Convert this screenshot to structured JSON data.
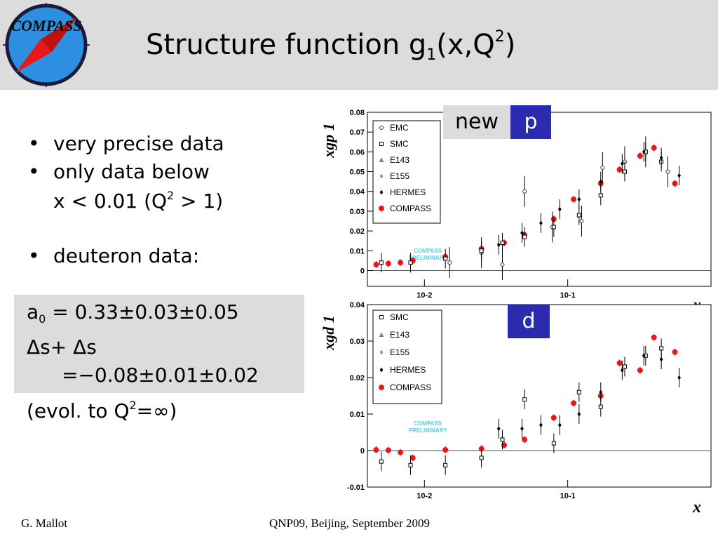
{
  "header": {
    "logo_text": "COMPASS",
    "title_main": "Structure function g",
    "title_sub": "1",
    "title_mid": "(x,Q",
    "title_sup": "2",
    "title_end": ")"
  },
  "bullets": {
    "b1": "very precise data",
    "b2_line1": "only data below",
    "b2_line2a": "x < 0.01 (Q",
    "b2_sup": "2",
    "b2_line2b": " > 1)",
    "b3": "deuteron data:"
  },
  "box": {
    "a0_label": "a",
    "a0_sub": "0",
    "a0_value": " =  0.33±0.03±0.05",
    "ds_label": "Δs+ Δs",
    "ds_value": "=−0.08±0.01±0.02"
  },
  "evol": {
    "text_a": "(evol. to Q",
    "sup": "2",
    "text_b": "=∞)"
  },
  "badges": {
    "new": "new",
    "p": "p",
    "d": "d"
  },
  "footer": {
    "author": "G. Mallot",
    "event": "QNP09, Beijing, September 2009"
  },
  "colors": {
    "header_bg": "#dcdcdc",
    "badge_blue": "#2b2bb0",
    "compass_red": "#e81818"
  },
  "chart_data": [
    {
      "type": "scatter",
      "panel": "p",
      "ylabel": "xg",
      "ylabel_sub": "1",
      "ylabel_sup": "p",
      "xlabel": "x",
      "x_scale": "log",
      "xlim": [
        0.004,
        1
      ],
      "ylim": [
        -0.008,
        0.08
      ],
      "y_ticks": [
        "0",
        "0.01",
        "0.02",
        "0.03",
        "0.04",
        "0.05",
        "0.06",
        "0.07",
        "0.08"
      ],
      "x_ticks": [
        "10-2",
        "10-1"
      ],
      "legend": [
        "EMC",
        "SMC",
        "E143",
        "E155",
        "HERMES",
        "COMPASS"
      ],
      "annotation": [
        "COMPASS",
        "PRELIMINARY"
      ],
      "series": [
        {
          "name": "COMPASS",
          "x": [
            0.0046,
            0.0056,
            0.0068,
            0.0083,
            0.014,
            0.025,
            0.036,
            0.05,
            0.08,
            0.11,
            0.17,
            0.23,
            0.32,
            0.4,
            0.56
          ],
          "y": [
            0.003,
            0.0035,
            0.004,
            0.005,
            0.007,
            0.011,
            0.014,
            0.018,
            0.026,
            0.036,
            0.044,
            0.051,
            0.058,
            0.062,
            0.044
          ]
        },
        {
          "name": "EMC",
          "x": [
            0.015,
            0.025,
            0.035,
            0.05,
            0.078,
            0.125,
            0.175,
            0.25,
            0.35,
            0.5
          ],
          "y": [
            0.004,
            0.009,
            0.003,
            0.04,
            0.022,
            0.025,
            0.052,
            0.055,
            0.06,
            0.05
          ]
        },
        {
          "name": "SMC",
          "x": [
            0.005,
            0.008,
            0.014,
            0.025,
            0.035,
            0.05,
            0.08,
            0.12,
            0.17,
            0.25,
            0.35,
            0.45
          ],
          "y": [
            0.004,
            0.004,
            0.006,
            0.01,
            0.014,
            0.017,
            0.022,
            0.028,
            0.038,
            0.05,
            0.06,
            0.055
          ]
        },
        {
          "name": "HERMES",
          "x": [
            0.033,
            0.048,
            0.065,
            0.088,
            0.12,
            0.17,
            0.24,
            0.34,
            0.45,
            0.6
          ],
          "y": [
            0.013,
            0.019,
            0.024,
            0.031,
            0.036,
            0.045,
            0.054,
            0.06,
            0.057,
            0.048
          ]
        }
      ]
    },
    {
      "type": "scatter",
      "panel": "d",
      "ylabel": "xg",
      "ylabel_sub": "1",
      "ylabel_sup": "d",
      "xlabel": "x",
      "x_scale": "log",
      "xlim": [
        0.004,
        1
      ],
      "ylim": [
        -0.01,
        0.04
      ],
      "y_ticks": [
        "-0.01",
        "0",
        "0.01",
        "0.02",
        "0.03",
        "0.04"
      ],
      "x_ticks": [
        "10-2",
        "10-1"
      ],
      "legend": [
        "SMC",
        "E143",
        "E155",
        "HERMES",
        "COMPASS"
      ],
      "annotation": [
        "COMPASS",
        "PRELIMINARY"
      ],
      "series": [
        {
          "name": "COMPASS",
          "x": [
            0.0046,
            0.0056,
            0.0068,
            0.0083,
            0.014,
            0.025,
            0.036,
            0.05,
            0.08,
            0.11,
            0.17,
            0.23,
            0.32,
            0.4,
            0.56
          ],
          "y": [
            0.0002,
            0.0001,
            -0.0005,
            -0.002,
            0.0002,
            0.0005,
            0.0015,
            0.003,
            0.009,
            0.013,
            0.015,
            0.024,
            0.022,
            0.031,
            0.027
          ]
        },
        {
          "name": "SMC",
          "x": [
            0.005,
            0.008,
            0.014,
            0.025,
            0.035,
            0.05,
            0.08,
            0.12,
            0.17,
            0.25,
            0.35,
            0.45
          ],
          "y": [
            -0.003,
            -0.004,
            -0.004,
            -0.002,
            0.003,
            0.014,
            0.002,
            0.016,
            0.012,
            0.023,
            0.026,
            0.028
          ]
        },
        {
          "name": "HERMES",
          "x": [
            0.033,
            0.048,
            0.065,
            0.088,
            0.12,
            0.17,
            0.24,
            0.34,
            0.45,
            0.6
          ],
          "y": [
            0.006,
            0.006,
            0.007,
            0.007,
            0.01,
            0.016,
            0.022,
            0.026,
            0.025,
            0.02
          ]
        }
      ]
    }
  ]
}
